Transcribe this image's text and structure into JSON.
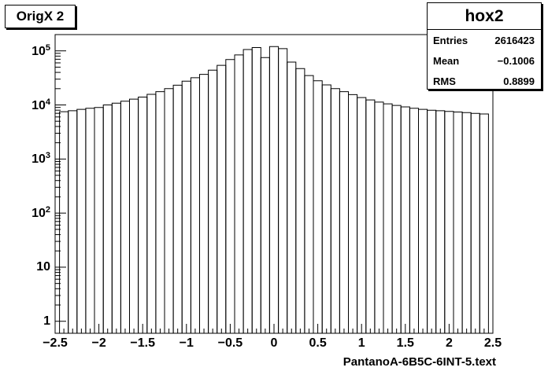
{
  "chart_data": {
    "type": "bar",
    "title": "OrigX 2",
    "xlabel": "PantanoA-6B5C-6INT-5.text",
    "ylabel": "",
    "yscale": "log",
    "xlim": [
      -2.5,
      2.5
    ],
    "ylim": [
      0.6,
      200000
    ],
    "grid": false,
    "xticks": [
      "−2.5",
      "−2",
      "−1.5",
      "−1",
      "−0.5",
      "0",
      "0.5",
      "1",
      "1.5",
      "2",
      "2.5"
    ],
    "ytick_values": [
      1,
      10,
      100,
      1000,
      10000,
      100000
    ],
    "yticks": [
      {
        "base": "1",
        "exp": ""
      },
      {
        "base": "10",
        "exp": ""
      },
      {
        "base": "10",
        "exp": "2"
      },
      {
        "base": "10",
        "exp": "3"
      },
      {
        "base": "10",
        "exp": "4"
      },
      {
        "base": "10",
        "exp": "5"
      }
    ],
    "bin_centers": [
      -2.4,
      -2.3,
      -2.2,
      -2.1,
      -2.0,
      -1.9,
      -1.8,
      -1.7,
      -1.6,
      -1.5,
      -1.4,
      -1.3,
      -1.2,
      -1.1,
      -1.0,
      -0.9,
      -0.8,
      -0.7,
      -0.6,
      -0.5,
      -0.4,
      -0.3,
      -0.2,
      -0.1,
      0.0,
      0.1,
      0.2,
      0.3,
      0.4,
      0.5,
      0.6,
      0.7,
      0.8,
      0.9,
      1.0,
      1.1,
      1.2,
      1.3,
      1.4,
      1.5,
      1.6,
      1.7,
      1.8,
      1.9,
      2.0,
      2.1,
      2.2,
      2.3,
      2.4
    ],
    "values": [
      7500,
      7800,
      8300,
      8700,
      9000,
      10000,
      10800,
      11700,
      12800,
      14000,
      15700,
      17600,
      20000,
      23200,
      27500,
      31800,
      36800,
      44000,
      54000,
      69000,
      84000,
      106000,
      115000,
      75000,
      120000,
      110000,
      62000,
      47000,
      35000,
      28000,
      23500,
      20000,
      17600,
      15500,
      13700,
      12400,
      11300,
      10500,
      9800,
      9200,
      8700,
      8300,
      8000,
      7800,
      7600,
      7400,
      7200,
      7000,
      6800
    ]
  },
  "stats": {
    "name": "hox2",
    "entries_label": "Entries",
    "entries_value": "2616423",
    "mean_label": "Mean",
    "mean_value": "−0.1006",
    "rms_label": "RMS",
    "rms_value": "0.8899"
  }
}
